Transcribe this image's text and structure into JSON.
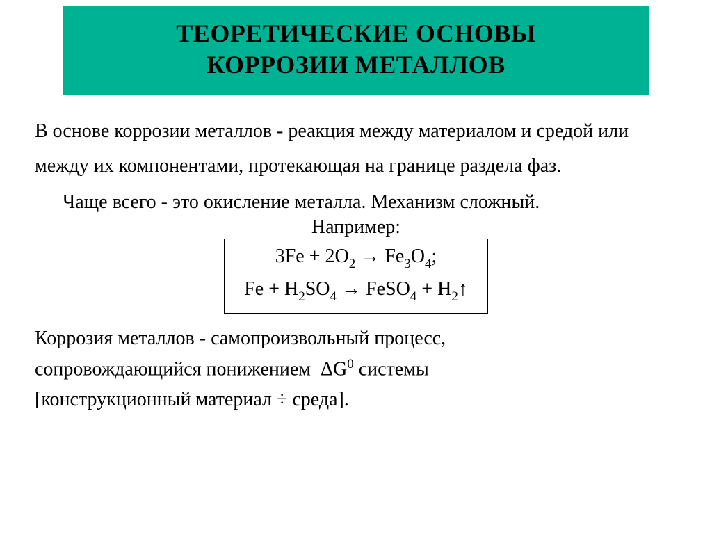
{
  "colors": {
    "title_bg": "#00b294",
    "title_text": "#000000",
    "body_text": "#000000",
    "slide_bg": "#ffffff",
    "box_border": "#000000"
  },
  "typography": {
    "title_fontsize_pt": 27,
    "body_fontsize_pt": 21,
    "font_family": "Times New Roman"
  },
  "title": {
    "line1": "ТЕОРЕТИЧЕСКИЕ ОСНОВЫ",
    "line2": "КОРРОЗИИ МЕТАЛЛОВ"
  },
  "para1": "В основе коррозии металлов - реакция между материалом и средой или между их компонентами, протекающая на границе раздела фаз.",
  "para2": "Чаще всего - это окисление металла. Механизм сложный.",
  "example": {
    "label": "Например:",
    "eq1": "3Fe + 2O₂ → Fe₃O₄;",
    "eq2": "Fe + H₂SO₄ → FeSO₄ + H₂↑"
  },
  "para3_l1": "Коррозия металлов - самопроизвольный процесс,",
  "para3_l2": "сопровождающийся понижением  ΔG⁰ системы",
  "para3_l3": "[конструкционный материал ÷ среда]."
}
